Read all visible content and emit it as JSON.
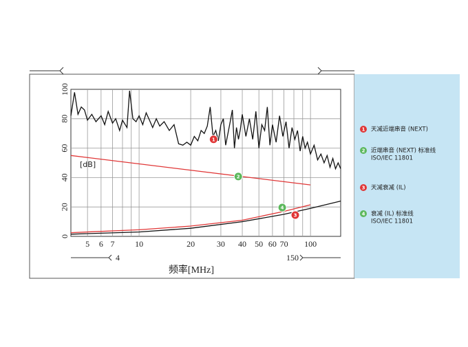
{
  "chart_data": {
    "type": "line",
    "xlabel": "频率[MHz]",
    "ylabel": "[dB]",
    "xscale": "log",
    "xlim": [
      4,
      150
    ],
    "ylim": [
      0,
      100
    ],
    "xticks": [
      5,
      6,
      7,
      10,
      20,
      30,
      40,
      50,
      60,
      70,
      100
    ],
    "xminor": [
      8,
      9,
      80,
      90
    ],
    "yticks": [
      0,
      20,
      40,
      60,
      80,
      100
    ],
    "grid": true,
    "series": [
      {
        "color": "#111111",
        "x": [
          4,
          4.2,
          4.4,
          4.6,
          4.8,
          5,
          5.3,
          5.6,
          6,
          6.3,
          6.6,
          7,
          7.3,
          7.7,
          8,
          8.5,
          8.8,
          9.2,
          9.6,
          10,
          10.5,
          11,
          11.5,
          12,
          12.6,
          13.2,
          14,
          15,
          16,
          17,
          18,
          19,
          20,
          21,
          22,
          23,
          24,
          25,
          26,
          27,
          28,
          29,
          30,
          31,
          32,
          33,
          34,
          35,
          36,
          37,
          38,
          39,
          40,
          42,
          44,
          46,
          48,
          50,
          52,
          54,
          56,
          58,
          60,
          63,
          66,
          69,
          72,
          75,
          78,
          81,
          84,
          87,
          90,
          93,
          96,
          100,
          105,
          110,
          115,
          120,
          125,
          130,
          135,
          140,
          145,
          150
        ],
        "values": [
          82,
          98,
          83,
          88,
          86,
          79,
          83,
          78,
          82,
          76,
          85,
          77,
          80,
          72,
          79,
          74,
          99,
          80,
          78,
          82,
          76,
          84,
          79,
          74,
          80,
          75,
          78,
          72,
          76,
          63,
          62,
          64,
          62,
          68,
          65,
          72,
          70,
          75,
          88,
          68,
          72,
          65,
          76,
          80,
          62,
          70,
          78,
          86,
          60,
          74,
          66,
          73,
          83,
          68,
          80,
          66,
          85,
          60,
          76,
          72,
          88,
          62,
          76,
          64,
          82,
          68,
          78,
          60,
          74,
          66,
          72,
          58,
          68,
          60,
          64,
          56,
          62,
          52,
          56,
          50,
          55,
          47,
          53,
          46,
          50,
          46
        ]
      },
      {
        "color": "#e03535",
        "x": [
          4,
          100
        ],
        "values": [
          55,
          35
        ]
      },
      {
        "color": "#111111",
        "x": [
          4,
          10,
          20,
          40,
          70,
          100,
          150
        ],
        "values": [
          1.5,
          3,
          5.5,
          10,
          15,
          19,
          24
        ]
      },
      {
        "color": "#e03535",
        "x": [
          4,
          10,
          20,
          40,
          70,
          100
        ],
        "values": [
          2.5,
          4.5,
          7,
          11,
          17,
          21.5
        ]
      }
    ],
    "markers": [
      {
        "label": "1",
        "color": "#e03535",
        "x": 27.2,
        "y": 66
      },
      {
        "label": "2",
        "color": "#5cb85c",
        "x": 37.9,
        "y": 40.7
      },
      {
        "label": "3",
        "color": "#e03535",
        "x": 81.5,
        "y": 14.5
      },
      {
        "label": "4",
        "color": "#5cb85c",
        "x": 68.4,
        "y": 19.6
      }
    ],
    "legend": [
      {
        "label": "1",
        "color": "#e03535",
        "text": [
          "天减近端串音 (NEXT)"
        ]
      },
      {
        "label": "2",
        "color": "#5cb85c",
        "text": [
          "近端串音 (NEXT) 标准线",
          "ISO/IEC 11801"
        ]
      },
      {
        "label": "3",
        "color": "#e03535",
        "text": [
          "天减衰减 (IL)"
        ]
      },
      {
        "label": "4",
        "color": "#5cb85c",
        "text": [
          "衰减 (IL) 标准线",
          "ISO/IEC 11801"
        ]
      }
    ]
  }
}
